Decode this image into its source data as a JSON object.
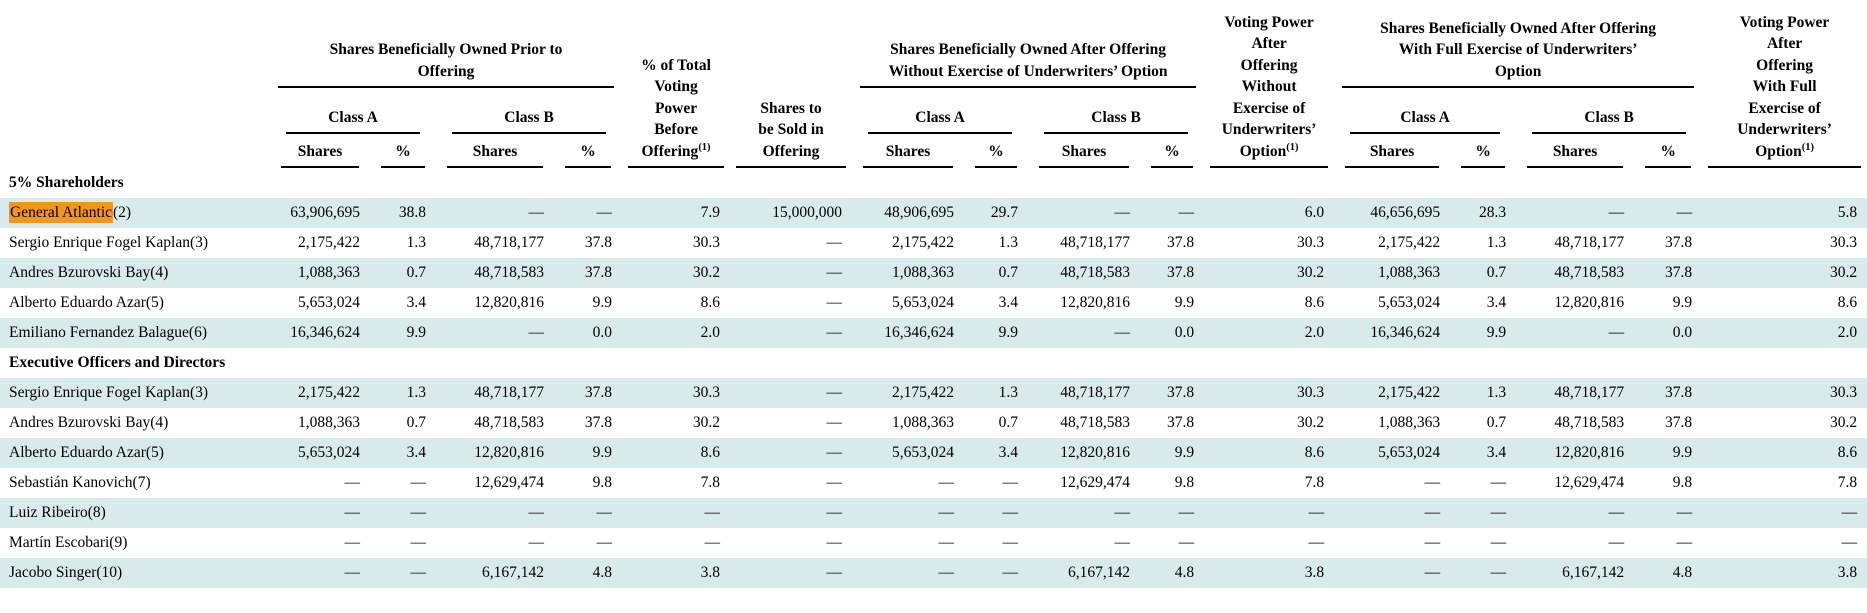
{
  "colors": {
    "row_band": "#d9eaeb",
    "search_highlight": "#f7941e"
  },
  "table": {
    "header": {
      "shares_label": "Shares",
      "pct_label": "%",
      "class_a": "Class A",
      "class_b": "Class B",
      "groups": {
        "prior": {
          "lines": [
            "Shares Beneficially Owned Prior to",
            "Offering"
          ]
        },
        "after_without": {
          "lines": [
            "Shares Beneficially Owned After Offering",
            "Without Exercise of Underwriters’ Option"
          ]
        },
        "after_full": {
          "lines": [
            "Shares Beneficially Owned After Offering",
            "With Full Exercise of Underwriters’",
            "Option"
          ]
        }
      },
      "voting_before": {
        "lines": [
          "% of Total",
          "Voting",
          "Power",
          "Before",
          "Offering"
        ],
        "sup": "(1)"
      },
      "shares_sold": {
        "lines": [
          "Shares to",
          "be Sold in",
          "Offering"
        ]
      },
      "voting_after_without": {
        "lines": [
          "Voting Power",
          "After",
          "Offering",
          "Without",
          "Exercise of",
          "Underwriters’",
          "Option"
        ],
        "sup": "(1)"
      },
      "voting_after_full": {
        "lines": [
          "Voting Power",
          "After",
          "Offering",
          "With Full",
          "Exercise of",
          "Underwriters’",
          "Option"
        ],
        "sup": "(1)"
      }
    },
    "rows": [
      {
        "type": "section",
        "label": "5% Shareholders"
      },
      {
        "type": "data",
        "shaded": true,
        "highlight": "General Atlantic",
        "name_rest": "(2)",
        "cells": [
          "63,906,695",
          "38.8",
          "—",
          "—",
          "7.9",
          "15,000,000",
          "48,906,695",
          "29.7",
          "—",
          "—",
          "6.0",
          "46,656,695",
          "28.3",
          "—",
          "—",
          "5.8"
        ]
      },
      {
        "type": "data",
        "shaded": false,
        "name": "Sergio Enrique Fogel Kaplan(3)",
        "cells": [
          "2,175,422",
          "1.3",
          "48,718,177",
          "37.8",
          "30.3",
          "—",
          "2,175,422",
          "1.3",
          "48,718,177",
          "37.8",
          "30.3",
          "2,175,422",
          "1.3",
          "48,718,177",
          "37.8",
          "30.3"
        ]
      },
      {
        "type": "data",
        "shaded": true,
        "name": "Andres Bzurovski Bay(4)",
        "cells": [
          "1,088,363",
          "0.7",
          "48,718,583",
          "37.8",
          "30.2",
          "—",
          "1,088,363",
          "0.7",
          "48,718,583",
          "37.8",
          "30.2",
          "1,088,363",
          "0.7",
          "48,718,583",
          "37.8",
          "30.2"
        ]
      },
      {
        "type": "data",
        "shaded": false,
        "name": "Alberto Eduardo Azar(5)",
        "cells": [
          "5,653,024",
          "3.4",
          "12,820,816",
          "9.9",
          "8.6",
          "—",
          "5,653,024",
          "3.4",
          "12,820,816",
          "9.9",
          "8.6",
          "5,653,024",
          "3.4",
          "12,820,816",
          "9.9",
          "8.6"
        ]
      },
      {
        "type": "data",
        "shaded": true,
        "name": "Emiliano Fernandez Balague(6)",
        "cells": [
          "16,346,624",
          "9.9",
          "—",
          "0.0",
          "2.0",
          "—",
          "16,346,624",
          "9.9",
          "—",
          "0.0",
          "2.0",
          "16,346,624",
          "9.9",
          "—",
          "0.0",
          "2.0"
        ]
      },
      {
        "type": "section",
        "label": "Executive Officers and Directors"
      },
      {
        "type": "data",
        "shaded": true,
        "name": "Sergio Enrique Fogel Kaplan(3)",
        "cells": [
          "2,175,422",
          "1.3",
          "48,718,177",
          "37.8",
          "30.3",
          "—",
          "2,175,422",
          "1.3",
          "48,718,177",
          "37.8",
          "30.3",
          "2,175,422",
          "1.3",
          "48,718,177",
          "37.8",
          "30.3"
        ]
      },
      {
        "type": "data",
        "shaded": false,
        "name": "Andres Bzurovski Bay(4)",
        "cells": [
          "1,088,363",
          "0.7",
          "48,718,583",
          "37.8",
          "30.2",
          "—",
          "1,088,363",
          "0.7",
          "48,718,583",
          "37.8",
          "30.2",
          "1,088,363",
          "0.7",
          "48,718,583",
          "37.8",
          "30.2"
        ]
      },
      {
        "type": "data",
        "shaded": true,
        "name": "Alberto Eduardo Azar(5)",
        "cells": [
          "5,653,024",
          "3.4",
          "12,820,816",
          "9.9",
          "8.6",
          "—",
          "5,653,024",
          "3.4",
          "12,820,816",
          "9.9",
          "8.6",
          "5,653,024",
          "3.4",
          "12,820,816",
          "9.9",
          "8.6"
        ]
      },
      {
        "type": "data",
        "shaded": false,
        "name": "Sebastián Kanovich(7)",
        "cells": [
          "—",
          "—",
          "12,629,474",
          "9.8",
          "7.8",
          "—",
          "—",
          "—",
          "12,629,474",
          "9.8",
          "7.8",
          "—",
          "—",
          "12,629,474",
          "9.8",
          "7.8"
        ]
      },
      {
        "type": "data",
        "shaded": true,
        "name": "Luiz Ribeiro(8)",
        "cells": [
          "—",
          "—",
          "—",
          "—",
          "—",
          "—",
          "—",
          "—",
          "—",
          "—",
          "—",
          "—",
          "—",
          "—",
          "—",
          "—"
        ]
      },
      {
        "type": "data",
        "shaded": false,
        "name": "Martín Escobari(9)",
        "cells": [
          "—",
          "—",
          "—",
          "—",
          "—",
          "—",
          "—",
          "—",
          "—",
          "—",
          "—",
          "—",
          "—",
          "—",
          "—",
          "—"
        ]
      },
      {
        "type": "data",
        "shaded": true,
        "name": "Jacobo Singer(10)",
        "cells": [
          "—",
          "—",
          "6,167,142",
          "4.8",
          "3.8",
          "—",
          "—",
          "—",
          "6,167,142",
          "4.8",
          "3.8",
          "—",
          "—",
          "6,167,142",
          "4.8",
          "3.8"
        ]
      }
    ]
  }
}
